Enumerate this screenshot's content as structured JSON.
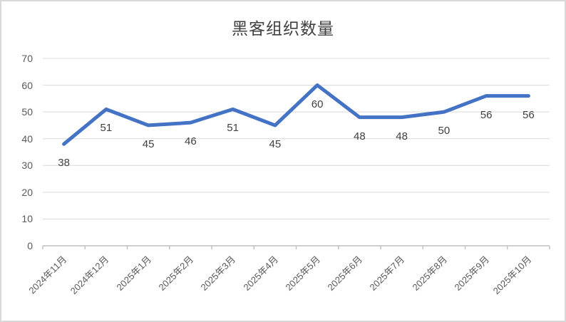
{
  "chart_data": {
    "type": "line",
    "title": "黑客组织数量",
    "categories": [
      "2024年11月",
      "2024年12月",
      "2025年1月",
      "2025年2月",
      "2025年3月",
      "2025年4月",
      "2025年5月",
      "2025年6月",
      "2025年7月",
      "2025年8月",
      "2025年9月",
      "2025年10月"
    ],
    "series": [
      {
        "name": "黑客组织数量",
        "values": [
          38,
          51,
          45,
          46,
          51,
          45,
          60,
          48,
          48,
          50,
          56,
          56
        ]
      }
    ],
    "xlabel": "",
    "ylabel": "",
    "ylim": [
      0,
      70
    ],
    "y_ticks": [
      0,
      10,
      20,
      30,
      40,
      50,
      60,
      70
    ],
    "grid": true,
    "legend_position": "none",
    "data_label_position": "below",
    "colors": {
      "line": "#4472C4",
      "gridline": "#D9D9D9",
      "axis_line": "#BFBFBF",
      "title_text": "#404040",
      "tick_text": "#595959",
      "data_label_text": "#404040",
      "border": "#D9D9D9",
      "background": "#FFFFFF"
    }
  }
}
